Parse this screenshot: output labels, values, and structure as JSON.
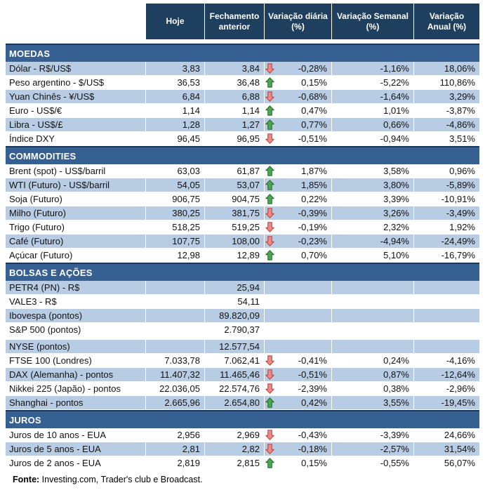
{
  "header": {
    "columns": [
      {
        "key": "hoje",
        "label": "Hoje"
      },
      {
        "key": "fechamento-anterior",
        "label": "Fechamento anterior"
      },
      {
        "key": "variacao-diaria",
        "label": "Variação diária (%)"
      },
      {
        "key": "variacao-semanal",
        "label": "Variação Semanal (%)"
      },
      {
        "key": "variacao-anual",
        "label": "Variação Anual (%)"
      }
    ]
  },
  "sections": [
    {
      "title": "MOEDAS",
      "stripe_start": "shaded",
      "rows": [
        {
          "label": "Dólar - R$/US$",
          "hoje": "3,83",
          "fechamento": "3,84",
          "arrow": "down",
          "diaria": "-0,28%",
          "semanal": "-1,16%",
          "anual": "18,06%"
        },
        {
          "label": "Peso argentino - $/US$",
          "hoje": "36,53",
          "fechamento": "36,48",
          "arrow": "up",
          "diaria": "0,15%",
          "semanal": "-5,22%",
          "anual": "110,86%"
        },
        {
          "label": "Yuan Chinês - ¥/US$",
          "hoje": "6,84",
          "fechamento": "6,88",
          "arrow": "down",
          "diaria": "-0,68%",
          "semanal": "-1,64%",
          "anual": "3,29%"
        },
        {
          "label": "Euro - US$/€",
          "hoje": "1,14",
          "fechamento": "1,14",
          "arrow": "up",
          "diaria": "0,47%",
          "semanal": "1,01%",
          "anual": "-3,87%"
        },
        {
          "label": "Libra - US$/£",
          "hoje": "1,28",
          "fechamento": "1,27",
          "arrow": "up",
          "diaria": "0,77%",
          "semanal": "0,66%",
          "anual": "-4,86%"
        },
        {
          "label": "Índice DXY",
          "hoje": "96,45",
          "fechamento": "96,95",
          "arrow": "down",
          "diaria": "-0,51%",
          "semanal": "-0,94%",
          "anual": "3,51%"
        }
      ]
    },
    {
      "title": "COMMODITIES",
      "stripe_start": "plain",
      "rows": [
        {
          "label": "Brent (spot) - US$/barril",
          "hoje": "63,03",
          "fechamento": "61,87",
          "arrow": "up",
          "diaria": "1,87%",
          "semanal": "3,58%",
          "anual": "0,96%"
        },
        {
          "label": "WTI (Futuro) - US$/barril",
          "hoje": "54,05",
          "fechamento": "53,07",
          "arrow": "up",
          "diaria": "1,85%",
          "semanal": "3,80%",
          "anual": "-5,89%"
        },
        {
          "label": "Soja (Futuro)",
          "hoje": "906,75",
          "fechamento": "904,75",
          "arrow": "up",
          "diaria": "0,22%",
          "semanal": "3,39%",
          "anual": "-10,91%"
        },
        {
          "label": "Milho (Futuro)",
          "hoje": "380,25",
          "fechamento": "381,75",
          "arrow": "down",
          "diaria": "-0,39%",
          "semanal": "3,26%",
          "anual": "-3,49%"
        },
        {
          "label": "Trigo (Futuro)",
          "hoje": "518,25",
          "fechamento": "519,25",
          "arrow": "down",
          "diaria": "-0,19%",
          "semanal": "2,32%",
          "anual": "1,92%"
        },
        {
          "label": "Café (Futuro)",
          "hoje": "107,75",
          "fechamento": "108,00",
          "arrow": "down",
          "diaria": "-0,23%",
          "semanal": "-4,94%",
          "anual": "-24,49%"
        },
        {
          "label": "Açúcar (Futuro)",
          "hoje": "12,98",
          "fechamento": "12,89",
          "arrow": "up",
          "diaria": "0,70%",
          "semanal": "5,10%",
          "anual": "-16,79%"
        }
      ]
    },
    {
      "title": "BOLSAS E AÇÕES",
      "stripe_start": "shaded",
      "rows": [
        {
          "label": "PETR4 (PN) - R$",
          "hoje": "",
          "fechamento": "25,94",
          "arrow": "",
          "diaria": "",
          "semanal": "",
          "anual": ""
        },
        {
          "label": "VALE3 - R$",
          "hoje": "",
          "fechamento": "54,11",
          "arrow": "",
          "diaria": "",
          "semanal": "",
          "anual": ""
        },
        {
          "label": "Ibovespa (pontos)",
          "hoje": "",
          "fechamento": "89.820,09",
          "arrow": "",
          "diaria": "",
          "semanal": "",
          "anual": ""
        },
        {
          "label": "S&P 500 (pontos)",
          "hoje": "",
          "fechamento": "2.790,37",
          "arrow": "",
          "diaria": "",
          "semanal": "",
          "anual": ""
        },
        {
          "label": "NYSE (pontos)",
          "hoje": "",
          "fechamento": "12.577,54",
          "arrow": "",
          "diaria": "",
          "semanal": "",
          "anual": "",
          "gap_before": true
        },
        {
          "label": "FTSE 100 (Londres)",
          "hoje": "7.033,78",
          "fechamento": "7.062,41",
          "arrow": "down",
          "diaria": "-0,41%",
          "semanal": "0,24%",
          "anual": "-4,16%"
        },
        {
          "label": "DAX (Alemanha) - pontos",
          "hoje": "11.407,32",
          "fechamento": "11.465,46",
          "arrow": "down",
          "diaria": "-0,51%",
          "semanal": "0,87%",
          "anual": "-12,64%"
        },
        {
          "label": "Nikkei 225 (Japão) - pontos",
          "hoje": "22.036,05",
          "fechamento": "22.574,76",
          "arrow": "down",
          "diaria": "-2,39%",
          "semanal": "0,38%",
          "anual": "-2,96%"
        },
        {
          "label": "Shanghai - pontos",
          "hoje": "2.665,96",
          "fechamento": "2.654,80",
          "arrow": "up",
          "diaria": "0,42%",
          "semanal": "3,55%",
          "anual": "-19,45%"
        }
      ]
    },
    {
      "title": "JUROS",
      "stripe_start": "plain",
      "rows": [
        {
          "label": "Juros de 10 anos - EUA",
          "hoje": "2,956",
          "fechamento": "2,969",
          "arrow": "down",
          "diaria": "-0,43%",
          "semanal": "-3,39%",
          "anual": "24,66%"
        },
        {
          "label": "Juros de 5 anos - EUA",
          "hoje": "2,81",
          "fechamento": "2,82",
          "arrow": "down",
          "diaria": "-0,18%",
          "semanal": "-2,57%",
          "anual": "31,54%"
        },
        {
          "label": "Juros de 2 anos - EUA",
          "hoje": "2,819",
          "fechamento": "2,815",
          "arrow": "up",
          "diaria": "0,15%",
          "semanal": "-0,55%",
          "anual": "56,07%"
        }
      ]
    }
  ],
  "footer": {
    "bold_label": "Fonte:",
    "text": " Investing.com, Trader's club e Broadcast."
  },
  "colors": {
    "header_bg": "#1f3f5f",
    "section_bg": "#376092",
    "section_border_top": "#17375d",
    "shaded_row": "#b8cce4",
    "up_arrow_fill": "#4aa64e",
    "up_arrow_stroke": "#276b2b",
    "down_arrow_fill": "#f28682",
    "down_arrow_stroke": "#b6413e"
  }
}
